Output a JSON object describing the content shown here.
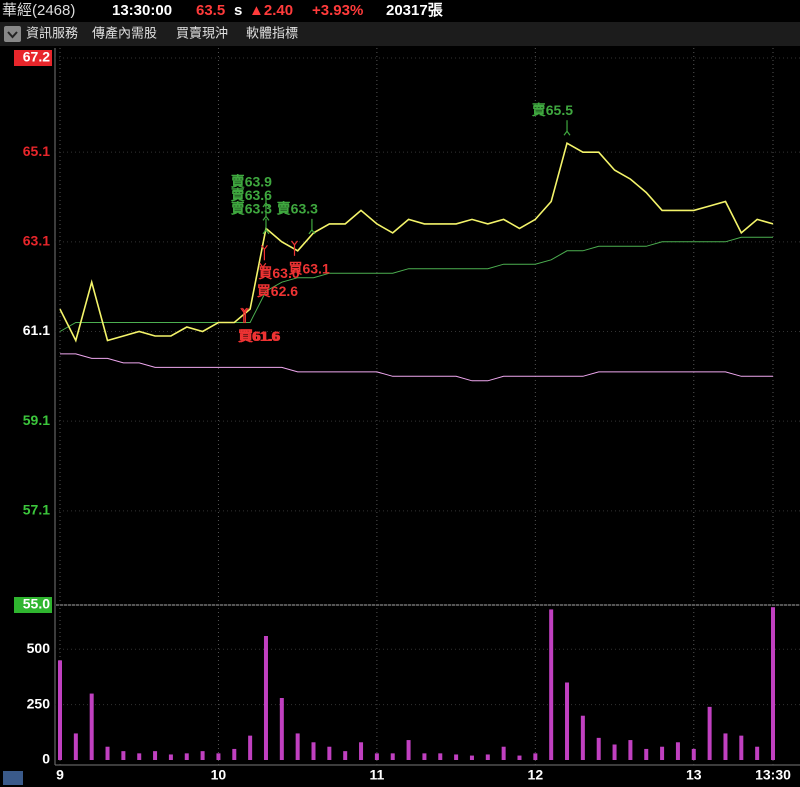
{
  "header": {
    "name": "華經(2468)",
    "time": "13:30:00",
    "price": "63.5",
    "price_suffix": "s",
    "change": "▲2.40",
    "change_pct": "+3.93%",
    "volume": "20317張"
  },
  "menu": [
    "資訊服務",
    "傳產內需股",
    "買賣現沖",
    "軟體指標"
  ],
  "chart_data": [
    {
      "type": "line",
      "x": [
        9.0,
        9.1,
        9.2,
        9.3,
        9.4,
        9.5,
        9.6,
        9.7,
        9.8,
        9.9,
        10.0,
        10.1,
        10.2,
        10.3,
        10.4,
        10.5,
        10.6,
        10.7,
        10.8,
        10.9,
        11.0,
        11.1,
        11.2,
        11.3,
        11.4,
        11.5,
        11.6,
        11.7,
        11.8,
        11.9,
        12.0,
        12.1,
        12.2,
        12.3,
        12.4,
        12.5,
        12.6,
        12.7,
        12.8,
        12.9,
        13.0,
        13.1,
        13.2,
        13.3,
        13.4,
        13.5
      ],
      "series": [
        {
          "color": "#f4f46a",
          "values": [
            61.6,
            60.9,
            62.2,
            60.9,
            61.0,
            61.1,
            61.0,
            61.0,
            61.2,
            61.1,
            61.3,
            61.3,
            61.6,
            63.4,
            63.1,
            62.9,
            63.3,
            63.5,
            63.5,
            63.8,
            63.5,
            63.3,
            63.6,
            63.5,
            63.5,
            63.5,
            63.6,
            63.5,
            63.6,
            63.4,
            63.6,
            64.0,
            65.3,
            65.1,
            65.1,
            64.7,
            64.5,
            64.2,
            63.8,
            63.8,
            63.8,
            63.9,
            64.0,
            63.3,
            63.6,
            63.5
          ]
        },
        {
          "color": "#4caf50",
          "values": [
            61.1,
            61.3,
            61.3,
            61.3,
            61.3,
            61.3,
            61.3,
            61.3,
            61.3,
            61.3,
            61.3,
            61.3,
            61.3,
            62.0,
            62.2,
            62.3,
            62.3,
            62.4,
            62.4,
            62.4,
            62.4,
            62.4,
            62.5,
            62.5,
            62.5,
            62.5,
            62.5,
            62.5,
            62.6,
            62.6,
            62.6,
            62.7,
            62.9,
            62.9,
            63.0,
            63.0,
            63.0,
            63.0,
            63.1,
            63.1,
            63.1,
            63.1,
            63.1,
            63.2,
            63.2,
            63.2
          ]
        },
        {
          "color": "#f0a8f0",
          "values": [
            60.6,
            60.6,
            60.5,
            60.5,
            60.4,
            60.4,
            60.3,
            60.3,
            60.3,
            60.3,
            60.3,
            60.3,
            60.3,
            60.3,
            60.3,
            60.2,
            60.2,
            60.2,
            60.2,
            60.2,
            60.2,
            60.1,
            60.1,
            60.1,
            60.1,
            60.1,
            60.0,
            60.0,
            60.1,
            60.1,
            60.1,
            60.1,
            60.1,
            60.1,
            60.2,
            60.2,
            60.2,
            60.2,
            60.2,
            60.2,
            60.2,
            60.2,
            60.2,
            60.1,
            60.1,
            60.1
          ]
        }
      ],
      "annotations": [
        {
          "text": "賣63.9",
          "x": 10.3,
          "y": 63.9,
          "color": "#3fa83f",
          "direction": "down"
        },
        {
          "text": "賣63.6",
          "x": 10.3,
          "y": 63.6,
          "color": "#3fa83f",
          "direction": "down"
        },
        {
          "text": "賣63.3",
          "x": 10.3,
          "y": 63.3,
          "color": "#3fa83f",
          "direction": "down"
        },
        {
          "text": "賣63.3",
          "x": 10.59,
          "y": 63.3,
          "color": "#3fa83f",
          "direction": "down"
        },
        {
          "text": "賣65.5",
          "x": 12.2,
          "y": 65.5,
          "color": "#3fa83f",
          "direction": "down"
        },
        {
          "text": "買61.6",
          "x": 10.16,
          "y": 61.6,
          "color": "#ee3333",
          "direction": "up"
        },
        {
          "text": "買61.6",
          "x": 10.17,
          "y": 61.6,
          "color": "#ee3333",
          "direction": "up"
        },
        {
          "text": "買63.0",
          "x": 10.29,
          "y": 63.0,
          "color": "#ee3333",
          "direction": "up"
        },
        {
          "text": "買62.6",
          "x": 10.28,
          "y": 62.6,
          "color": "#ee3333",
          "direction": "up"
        },
        {
          "text": "買63.1",
          "x": 10.48,
          "y": 63.1,
          "color": "#ee3333",
          "direction": "up"
        }
      ],
      "xlim": [
        9,
        13.5
      ],
      "ylim": [
        55,
        67.2
      ],
      "yticks": [
        67.2,
        65.1,
        63.1,
        61.1,
        59.1,
        57.1,
        {
          "value": 55,
          "label": "55.0"
        }
      ],
      "ytick_colors": [
        "#ffffff",
        "#e8262b",
        "#e8262b",
        "#ffffff",
        "#3cc63c",
        "#3cc63c",
        "#ffffff"
      ],
      "ytick_backgrounds": [
        "#e8262b",
        null,
        null,
        null,
        null,
        null,
        "#2fb52f"
      ],
      "grid": true
    },
    {
      "type": "bar",
      "x": [
        9.0,
        9.1,
        9.2,
        9.3,
        9.4,
        9.5,
        9.6,
        9.7,
        9.8,
        9.9,
        10.0,
        10.1,
        10.2,
        10.3,
        10.4,
        10.5,
        10.6,
        10.7,
        10.8,
        10.9,
        11.0,
        11.1,
        11.2,
        11.3,
        11.4,
        11.5,
        11.6,
        11.7,
        11.8,
        11.9,
        12.0,
        12.1,
        12.2,
        12.3,
        12.4,
        12.5,
        12.6,
        12.7,
        12.8,
        12.9,
        13.0,
        13.1,
        13.2,
        13.3,
        13.4,
        13.5
      ],
      "values": [
        450,
        120,
        300,
        60,
        40,
        30,
        40,
        25,
        30,
        40,
        30,
        50,
        110,
        560,
        280,
        120,
        80,
        60,
        40,
        80,
        30,
        30,
        90,
        30,
        30,
        25,
        20,
        25,
        60,
        20,
        30,
        680,
        350,
        200,
        100,
        70,
        90,
        50,
        60,
        80,
        50,
        240,
        120,
        110,
        60,
        690
      ],
      "color": "#c040c0",
      "xlim": [
        9,
        13.5
      ],
      "xticks": [
        9,
        10,
        11,
        12,
        13,
        {
          "value": 13.5,
          "label": "13:30"
        }
      ],
      "ylim": [
        0,
        700
      ],
      "yticks": [
        0,
        250,
        500
      ],
      "grid": true
    }
  ]
}
